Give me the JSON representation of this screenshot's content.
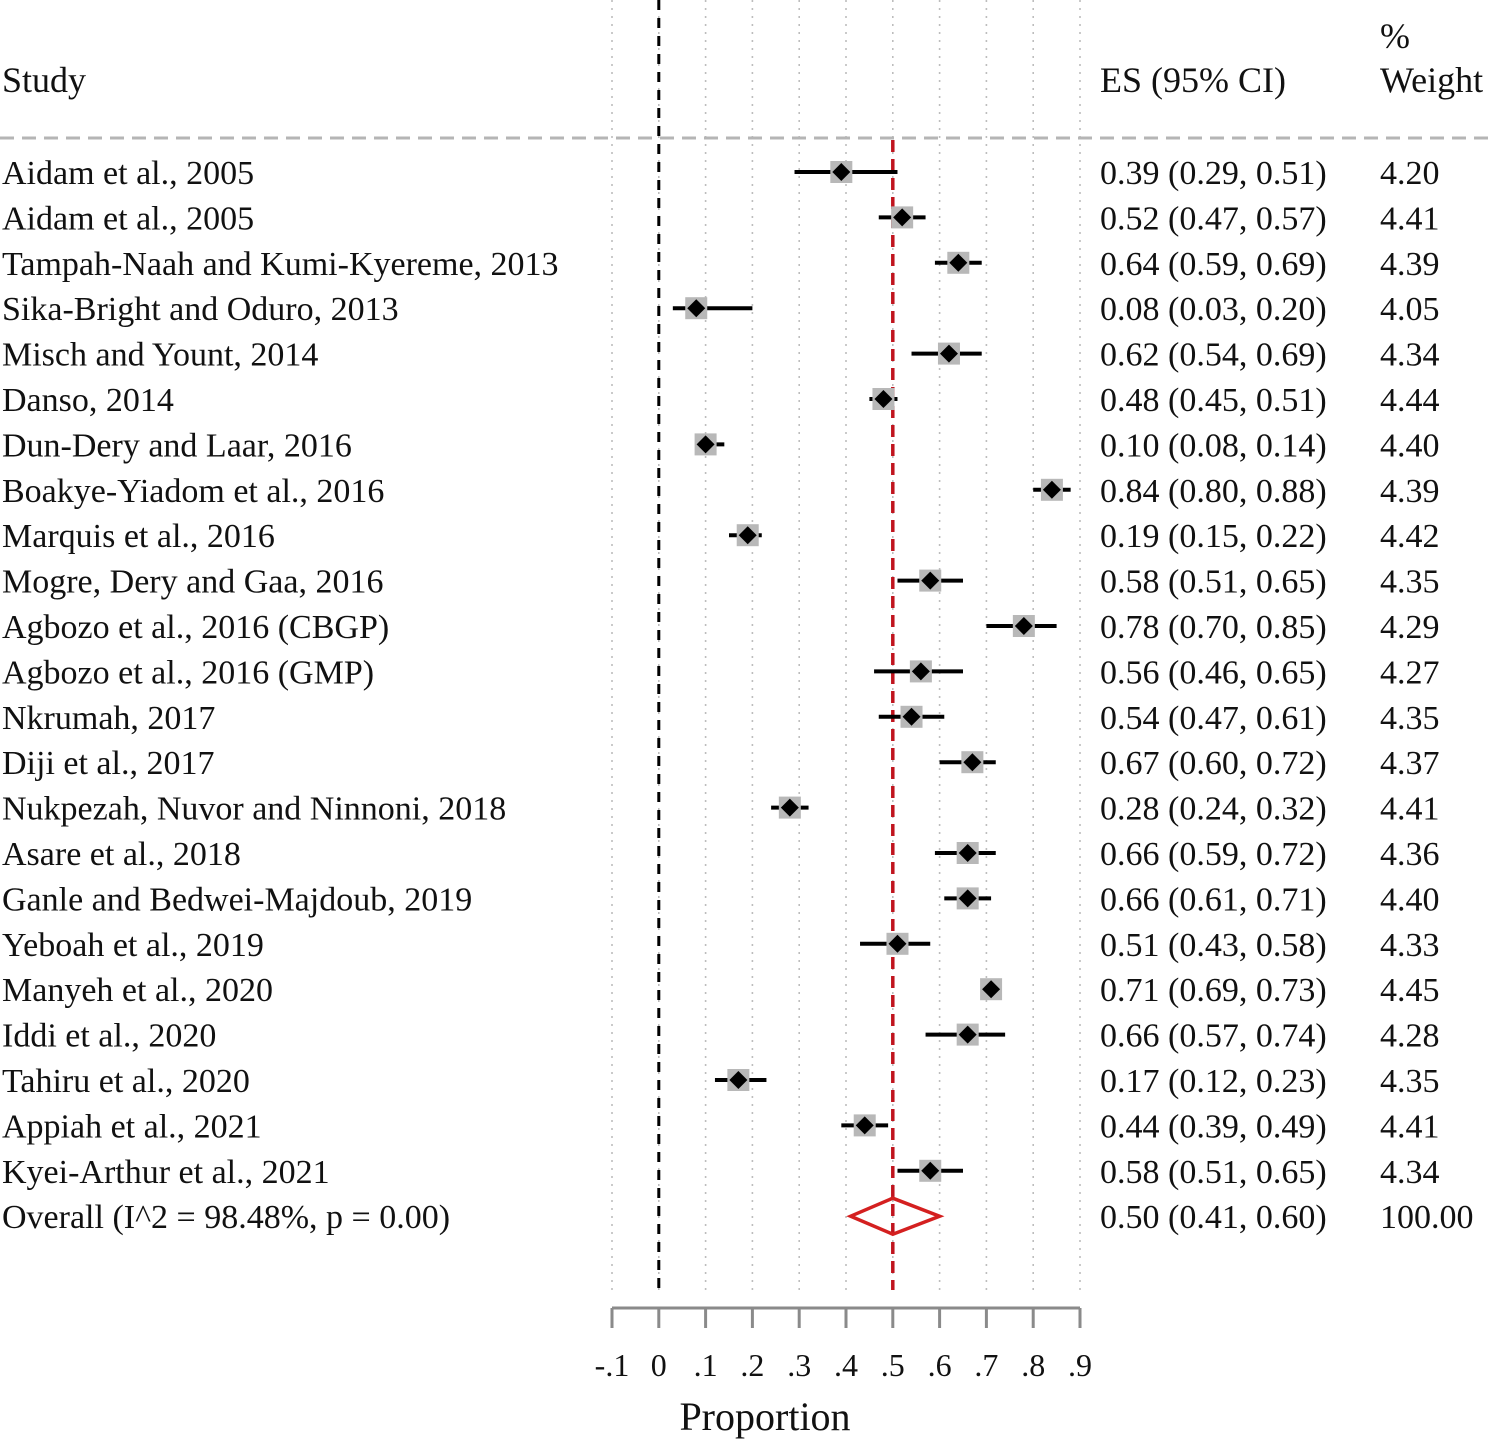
{
  "headers": {
    "study": "Study",
    "es": "ES (95% CI)",
    "weight_line1": "%",
    "weight_line2": "Weight"
  },
  "chart_data": {
    "type": "forest",
    "xlabel": "Proportion",
    "xlim": [
      -0.1,
      0.9
    ],
    "xticks": [
      -0.1,
      0,
      0.1,
      0.2,
      0.3,
      0.4,
      0.5,
      0.6,
      0.7,
      0.8,
      0.9
    ],
    "xtick_labels": [
      "-.1",
      "0",
      ".1",
      ".2",
      ".3",
      ".4",
      ".5",
      ".6",
      ".7",
      ".8",
      ".9"
    ],
    "null_line": 0,
    "overall_line": 0.5,
    "grid": true,
    "studies": [
      {
        "label": "Aidam et al., 2005",
        "es": 0.39,
        "lo": 0.29,
        "hi": 0.51,
        "es_text": "0.39 (0.29, 0.51)",
        "weight": "4.20"
      },
      {
        "label": "Aidam et al., 2005",
        "es": 0.52,
        "lo": 0.47,
        "hi": 0.57,
        "es_text": "0.52 (0.47, 0.57)",
        "weight": "4.41"
      },
      {
        "label": "Tampah-Naah and Kumi-Kyereme, 2013",
        "es": 0.64,
        "lo": 0.59,
        "hi": 0.69,
        "es_text": "0.64 (0.59, 0.69)",
        "weight": "4.39"
      },
      {
        "label": "Sika-Bright and Oduro, 2013",
        "es": 0.08,
        "lo": 0.03,
        "hi": 0.2,
        "es_text": "0.08 (0.03, 0.20)",
        "weight": "4.05"
      },
      {
        "label": "Misch and Yount, 2014",
        "es": 0.62,
        "lo": 0.54,
        "hi": 0.69,
        "es_text": "0.62 (0.54, 0.69)",
        "weight": "4.34"
      },
      {
        "label": "Danso, 2014",
        "es": 0.48,
        "lo": 0.45,
        "hi": 0.51,
        "es_text": "0.48 (0.45, 0.51)",
        "weight": "4.44"
      },
      {
        "label": "Dun-Dery and Laar, 2016",
        "es": 0.1,
        "lo": 0.08,
        "hi": 0.14,
        "es_text": "0.10 (0.08, 0.14)",
        "weight": "4.40"
      },
      {
        "label": "Boakye-Yiadom et al., 2016",
        "es": 0.84,
        "lo": 0.8,
        "hi": 0.88,
        "es_text": "0.84 (0.80, 0.88)",
        "weight": "4.39"
      },
      {
        "label": "Marquis et al., 2016",
        "es": 0.19,
        "lo": 0.15,
        "hi": 0.22,
        "es_text": "0.19 (0.15, 0.22)",
        "weight": "4.42"
      },
      {
        "label": "Mogre, Dery and Gaa, 2016",
        "es": 0.58,
        "lo": 0.51,
        "hi": 0.65,
        "es_text": "0.58 (0.51, 0.65)",
        "weight": "4.35"
      },
      {
        "label": "Agbozo et al., 2016 (CBGP)",
        "es": 0.78,
        "lo": 0.7,
        "hi": 0.85,
        "es_text": "0.78 (0.70, 0.85)",
        "weight": "4.29"
      },
      {
        "label": "Agbozo et al., 2016 (GMP)",
        "es": 0.56,
        "lo": 0.46,
        "hi": 0.65,
        "es_text": "0.56 (0.46, 0.65)",
        "weight": "4.27"
      },
      {
        "label": "Nkrumah, 2017",
        "es": 0.54,
        "lo": 0.47,
        "hi": 0.61,
        "es_text": "0.54 (0.47, 0.61)",
        "weight": "4.35"
      },
      {
        "label": "Diji et al., 2017",
        "es": 0.67,
        "lo": 0.6,
        "hi": 0.72,
        "es_text": "0.67 (0.60, 0.72)",
        "weight": "4.37"
      },
      {
        "label": "Nukpezah, Nuvor and Ninnoni, 2018",
        "es": 0.28,
        "lo": 0.24,
        "hi": 0.32,
        "es_text": "0.28 (0.24, 0.32)",
        "weight": "4.41"
      },
      {
        "label": "Asare et al., 2018",
        "es": 0.66,
        "lo": 0.59,
        "hi": 0.72,
        "es_text": "0.66 (0.59, 0.72)",
        "weight": "4.36"
      },
      {
        "label": "Ganle and Bedwei-Majdoub, 2019",
        "es": 0.66,
        "lo": 0.61,
        "hi": 0.71,
        "es_text": "0.66 (0.61, 0.71)",
        "weight": "4.40"
      },
      {
        "label": "Yeboah et al., 2019",
        "es": 0.51,
        "lo": 0.43,
        "hi": 0.58,
        "es_text": "0.51 (0.43, 0.58)",
        "weight": "4.33"
      },
      {
        "label": "Manyeh et al., 2020",
        "es": 0.71,
        "lo": 0.69,
        "hi": 0.73,
        "es_text": "0.71 (0.69, 0.73)",
        "weight": "4.45"
      },
      {
        "label": "Iddi et al., 2020",
        "es": 0.66,
        "lo": 0.57,
        "hi": 0.74,
        "es_text": "0.66 (0.57, 0.74)",
        "weight": "4.28"
      },
      {
        "label": "Tahiru et al., 2020",
        "es": 0.17,
        "lo": 0.12,
        "hi": 0.23,
        "es_text": "0.17 (0.12, 0.23)",
        "weight": "4.35"
      },
      {
        "label": "Appiah et al., 2021",
        "es": 0.44,
        "lo": 0.39,
        "hi": 0.49,
        "es_text": "0.44 (0.39, 0.49)",
        "weight": "4.41"
      },
      {
        "label": "Kyei-Arthur et al., 2021",
        "es": 0.58,
        "lo": 0.51,
        "hi": 0.65,
        "es_text": "0.58 (0.51, 0.65)",
        "weight": "4.34"
      }
    ],
    "overall": {
      "label": "Overall  (I^2 = 98.48%, p = 0.00)",
      "es": 0.5,
      "lo": 0.41,
      "hi": 0.6,
      "es_text": "0.50 (0.41, 0.60)",
      "weight": "100.00"
    },
    "colors": {
      "ci_line": "#000000",
      "point": "#000000",
      "weight_box": "#b8b8b8",
      "overall_diamond": "#d42020",
      "overall_line": "#c0141e",
      "null_line": "#000000",
      "grid": "#bdbdbd",
      "header_rule": "#b5b5b5",
      "axis": "#8a8a8a"
    }
  }
}
